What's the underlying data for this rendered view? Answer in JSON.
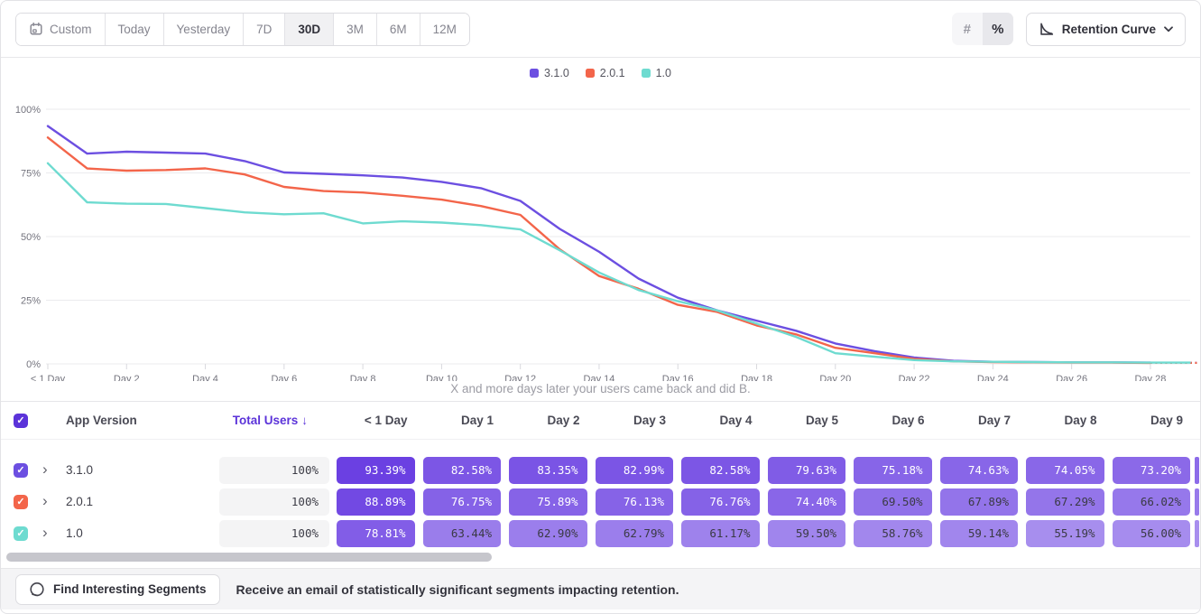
{
  "toolbar": {
    "date_ranges": [
      {
        "label": "Custom",
        "icon": "calendar",
        "active": false
      },
      {
        "label": "Today",
        "active": false
      },
      {
        "label": "Yesterday",
        "active": false
      },
      {
        "label": "7D",
        "active": false
      },
      {
        "label": "30D",
        "active": true
      },
      {
        "label": "3M",
        "active": false
      },
      {
        "label": "6M",
        "active": false
      },
      {
        "label": "12M",
        "active": false
      }
    ],
    "value_formats": {
      "number": "#",
      "percent": "%",
      "active": "%"
    },
    "chart_type_label": "Retention Curve"
  },
  "chart_data": {
    "type": "line",
    "subtitle": "X and more days later your users came back and did B.",
    "ylim": [
      0,
      100
    ],
    "grid": true,
    "legend_position": "top-center",
    "y_ticks": [
      {
        "label": "100%",
        "value": 100
      },
      {
        "label": "75%",
        "value": 75
      },
      {
        "label": "50%",
        "value": 50
      },
      {
        "label": "25%",
        "value": 25
      },
      {
        "label": "0%",
        "value": 0
      }
    ],
    "x_ticks": [
      {
        "label": "< 1 Day",
        "day": 0
      },
      {
        "label": "Day 2",
        "day": 2
      },
      {
        "label": "Day 4",
        "day": 4
      },
      {
        "label": "Day 6",
        "day": 6
      },
      {
        "label": "Day 8",
        "day": 8
      },
      {
        "label": "Day 10",
        "day": 10
      },
      {
        "label": "Day 12",
        "day": 12
      },
      {
        "label": "Day 14",
        "day": 14
      },
      {
        "label": "Day 16",
        "day": 16
      },
      {
        "label": "Day 18",
        "day": 18
      },
      {
        "label": "Day 20",
        "day": 20
      },
      {
        "label": "Day 22",
        "day": 22
      },
      {
        "label": "Day 24",
        "day": 24
      },
      {
        "label": "Day 26",
        "day": 26
      },
      {
        "label": "Day 28",
        "day": 28
      }
    ],
    "series": [
      {
        "name": "3.1.0",
        "color": "#6C4FE1",
        "dashed_tail": true,
        "values": [
          93.39,
          82.58,
          83.35,
          82.99,
          82.58,
          79.63,
          75.18,
          74.63,
          74.05,
          73.2,
          71.5,
          69,
          64,
          53,
          44,
          33.5,
          26,
          21,
          17,
          13,
          8,
          5,
          2.5,
          1.2,
          0.8,
          0.7,
          0.6,
          0.6,
          0.5,
          0.4
        ]
      },
      {
        "name": "2.0.1",
        "color": "#F3654A",
        "dashed_tail": true,
        "values": [
          88.89,
          76.75,
          75.89,
          76.13,
          76.76,
          74.4,
          69.5,
          67.89,
          67.29,
          66.02,
          64.5,
          62,
          58.5,
          45,
          34.5,
          29.5,
          23.2,
          20.4,
          15.1,
          11.6,
          6.3,
          4.2,
          2,
          1,
          0.7,
          0.6,
          0.5,
          0.5,
          0.4,
          0.4
        ]
      },
      {
        "name": "1.0",
        "color": "#6EDBD0",
        "dashed_tail": false,
        "values": [
          78.81,
          63.44,
          62.9,
          62.79,
          61.17,
          59.5,
          58.76,
          59.14,
          55.19,
          56,
          55.5,
          54.5,
          52.8,
          44.6,
          35.9,
          29,
          24.6,
          21,
          15.8,
          10.6,
          4.2,
          2.8,
          1.5,
          1,
          0.8,
          0.7,
          0.6,
          0.6,
          0.5,
          0.5
        ]
      }
    ]
  },
  "table": {
    "headers": {
      "app_version": "App Version",
      "total_users": "Total Users",
      "sort_indicator": "↓",
      "day_columns": [
        "< 1 Day",
        "Day 1",
        "Day 2",
        "Day 3",
        "Day 4",
        "Day 5",
        "Day 6",
        "Day 7",
        "Day 8",
        "Day 9"
      ]
    },
    "rows": [
      {
        "version": "3.1.0",
        "color": "#6C4FE1",
        "total_users": "100%",
        "values": [
          "93.39%",
          "82.58%",
          "83.35%",
          "82.99%",
          "82.58%",
          "79.63%",
          "75.18%",
          "74.63%",
          "74.05%",
          "73.20%"
        ]
      },
      {
        "version": "2.0.1",
        "color": "#F3654A",
        "total_users": "100%",
        "values": [
          "88.89%",
          "76.75%",
          "75.89%",
          "76.13%",
          "76.76%",
          "74.40%",
          "69.50%",
          "67.89%",
          "67.29%",
          "66.02%"
        ]
      },
      {
        "version": "1.0",
        "color": "#6EDBD0",
        "total_users": "100%",
        "values": [
          "78.81%",
          "63.44%",
          "62.90%",
          "62.79%",
          "61.17%",
          "59.50%",
          "58.76%",
          "59.14%",
          "55.19%",
          "56.00%"
        ]
      }
    ]
  },
  "footer": {
    "button_label": "Find Interesting Segments",
    "message": "Receive an email of statistically significant segments impacting retention."
  },
  "colors": {
    "accent_purple": "#5B33D9",
    "cell_base_purple": "#6032E0",
    "grid_line": "#ebebee",
    "axis_text": "#74747e"
  }
}
